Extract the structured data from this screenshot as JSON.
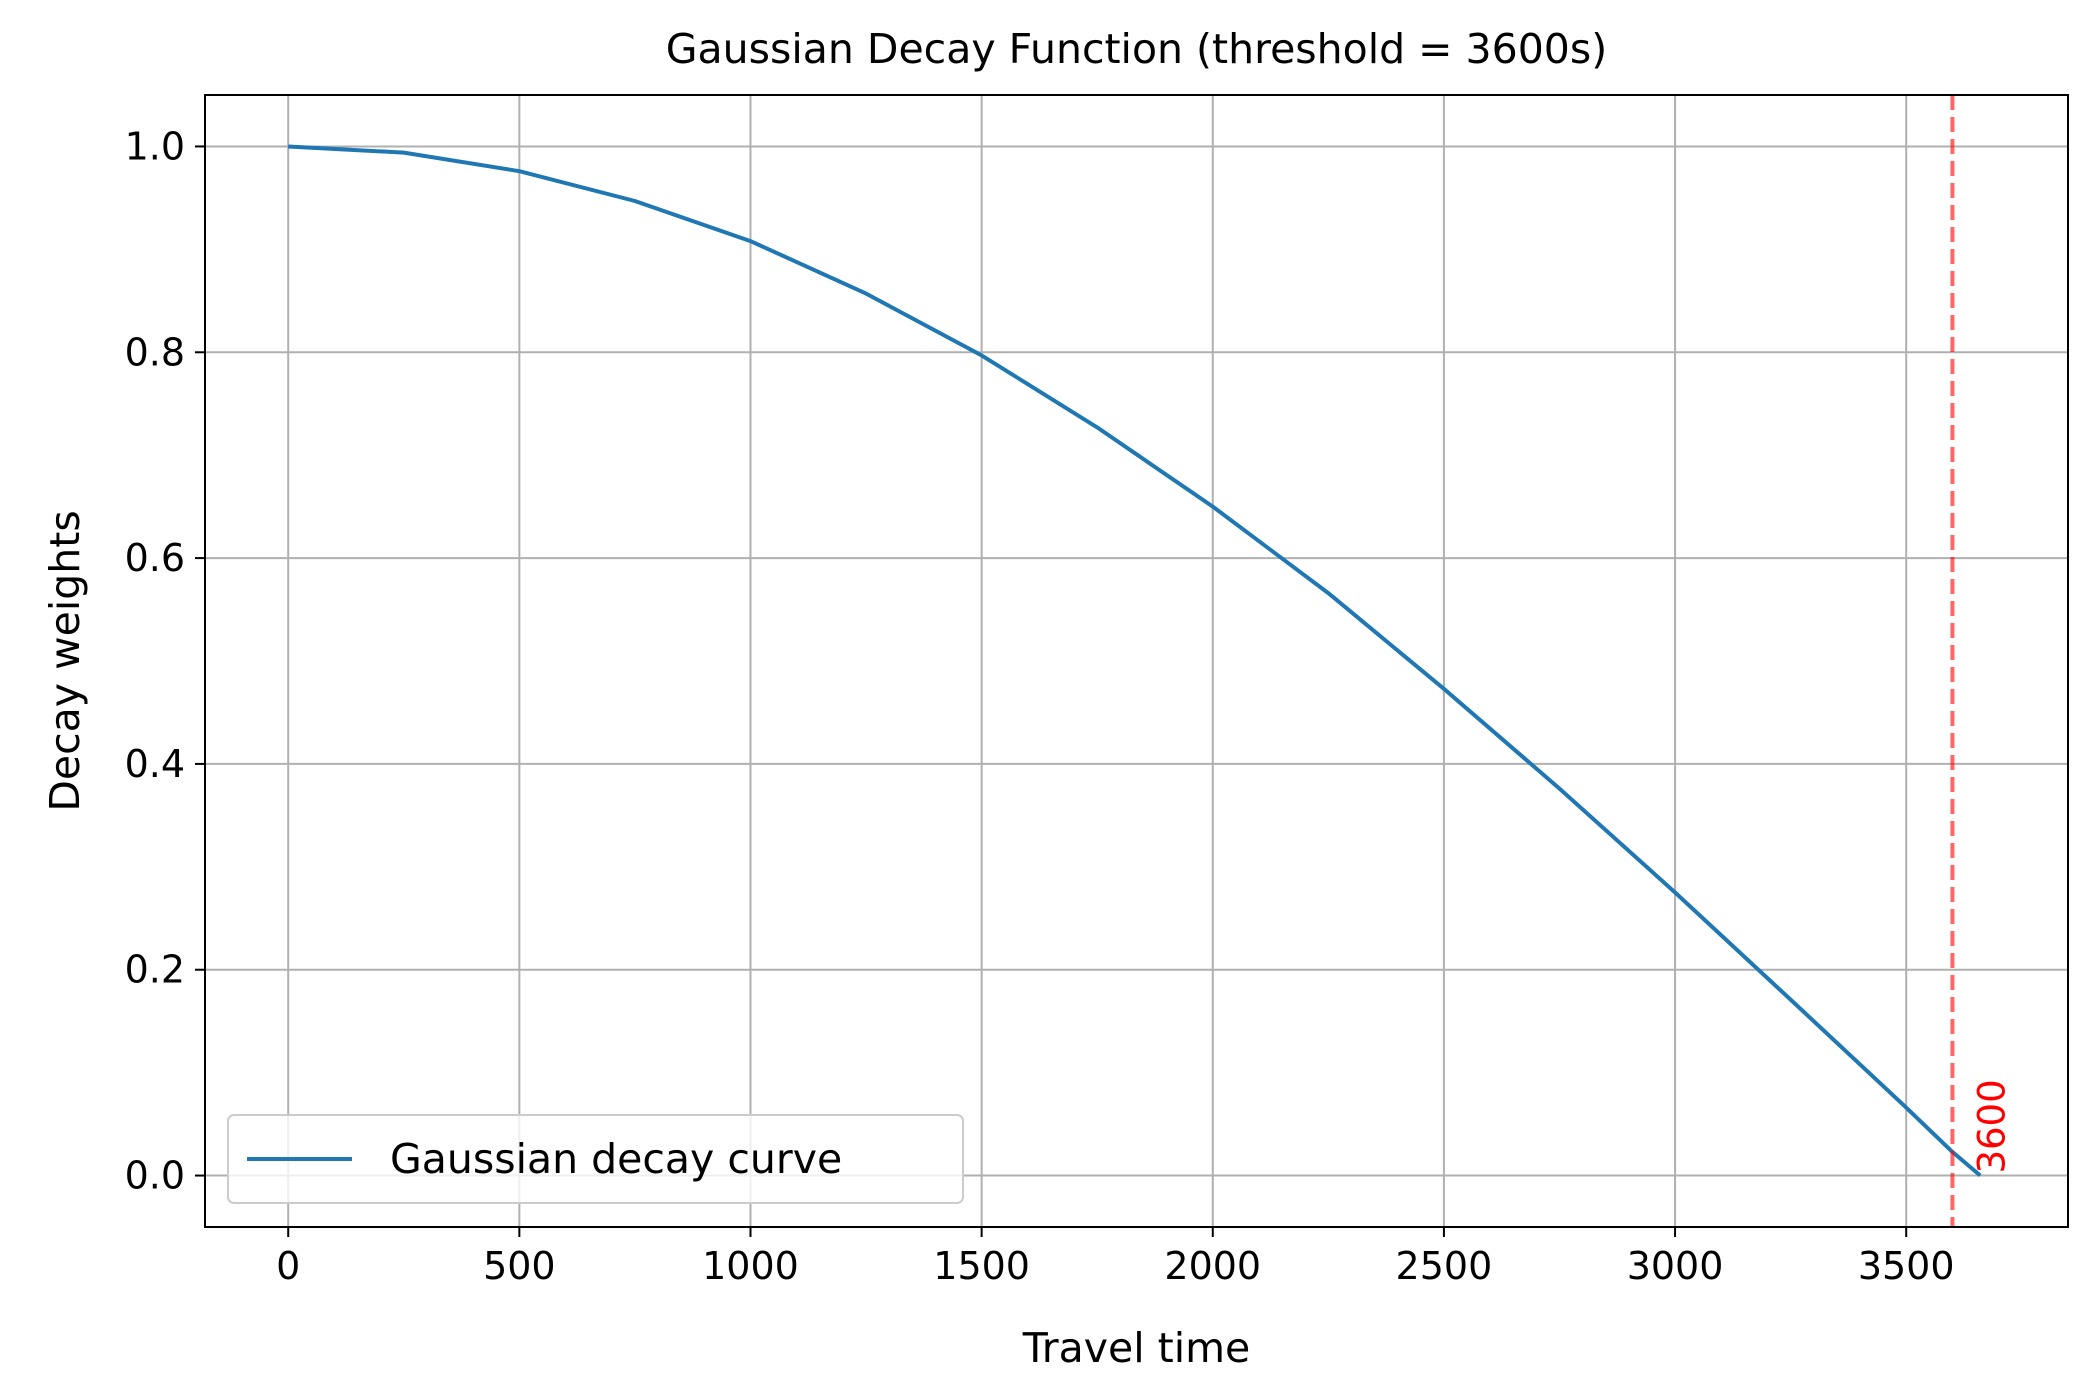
{
  "chart_data": {
    "type": "line",
    "title": "Gaussian Decay Function (threshold = 3600s)",
    "xlabel": "Travel time",
    "ylabel": "Decay weights",
    "xlim": [
      -180,
      3850
    ],
    "ylim": [
      -0.05,
      1.05
    ],
    "xticks": [
      0,
      500,
      1000,
      1500,
      2000,
      2500,
      3000,
      3500
    ],
    "xtick_labels": [
      "0",
      "500",
      "1000",
      "1500",
      "2000",
      "2500",
      "3000",
      "3500"
    ],
    "yticks": [
      0.0,
      0.2,
      0.4,
      0.6,
      0.8,
      1.0
    ],
    "ytick_labels": [
      "0.0",
      "0.2",
      "0.4",
      "0.6",
      "0.8",
      "1.0"
    ],
    "grid": true,
    "legend_position": "lower-left",
    "series": [
      {
        "name": "Gaussian decay curve",
        "color": "#1f77b4",
        "x": [
          0,
          250,
          500,
          750,
          1000,
          1250,
          1500,
          1750,
          2000,
          2250,
          2500,
          2750,
          3000,
          3250,
          3500,
          3600,
          3660
        ],
        "y": [
          1.0,
          0.994,
          0.976,
          0.947,
          0.908,
          0.857,
          0.797,
          0.727,
          0.65,
          0.566,
          0.473,
          0.376,
          0.275,
          0.171,
          0.066,
          0.023,
          0.0
        ]
      }
    ],
    "threshold_line": {
      "x": 3600,
      "color": "#ff0000",
      "style": "dashed",
      "label": "3600"
    }
  }
}
